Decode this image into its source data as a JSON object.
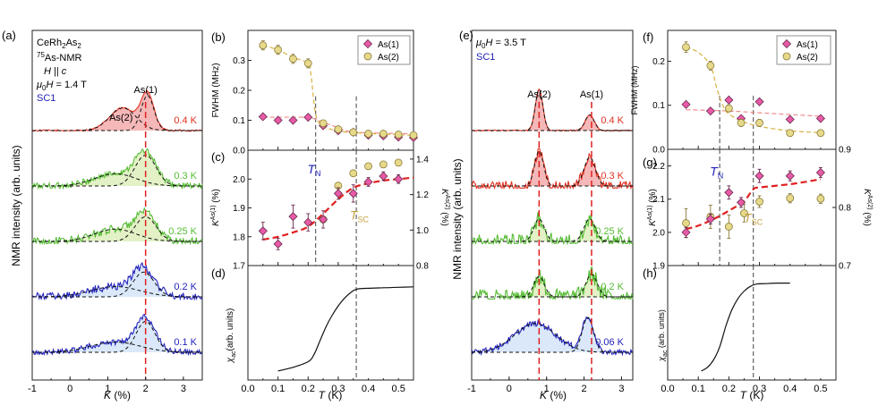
{
  "colors": {
    "as1": "#e85aa6",
    "as1_edge": "#6a2a50",
    "as2": "#e6d98a",
    "as2_edge": "#8a7a3a",
    "fit1": "#f08a8a",
    "fit2": "#d8b040",
    "guide": "#e02020",
    "red": "#e03020",
    "green": "#55bb33",
    "blue": "#2222bb",
    "gold": "#c8a040",
    "axis": "#222222",
    "vline": "#444444"
  },
  "chart_data": [
    {
      "id": "a",
      "type": "line",
      "panel_label": "(a)",
      "title_lines": [
        "CeRh2As2",
        "75As-NMR",
        "H || c",
        "μ0H = 1.4 T",
        "SC1"
      ],
      "xlabel": "K (%)",
      "ylabel": "NMR intensity (arb. units)",
      "xlim": [
        -1,
        3.5
      ],
      "xticks": [
        -1,
        0,
        1,
        2,
        3
      ],
      "guide_x": 2.0,
      "peak_labels": [
        {
          "text": "As(2)",
          "k": 1.35
        },
        {
          "text": "As(1)",
          "k": 2.0
        }
      ],
      "traces": [
        {
          "temp": "0.4 K",
          "color": "red",
          "fill": "#f4b0b0",
          "peaks": [
            [
              1.4,
              0.35,
              0.55
            ],
            [
              2.05,
              0.17,
              0.85
            ]
          ],
          "noise": 0.02
        },
        {
          "temp": "0.3 K",
          "color": "green",
          "fill": "#dff0c0",
          "peaks": [
            [
              1.2,
              0.55,
              0.3
            ],
            [
              2.0,
              0.28,
              0.75
            ]
          ],
          "noise": 0.08
        },
        {
          "temp": "0.25 K",
          "color": "green",
          "fill": "#dff0c0",
          "peaks": [
            [
              1.2,
              0.55,
              0.3
            ],
            [
              2.0,
              0.28,
              0.6
            ]
          ],
          "noise": 0.1
        },
        {
          "temp": "0.2 K",
          "color": "blue",
          "fill": "#d6e6f8",
          "peaks": [
            [
              1.2,
              0.65,
              0.25
            ],
            [
              1.95,
              0.28,
              0.6
            ]
          ],
          "noise": 0.1
        },
        {
          "temp": "0.1 K",
          "color": "blue",
          "fill": "#d6e6f8",
          "peaks": [
            [
              1.2,
              0.65,
              0.25
            ],
            [
              2.0,
              0.25,
              0.75
            ]
          ],
          "noise": 0.07
        }
      ]
    },
    {
      "id": "b",
      "type": "scatter",
      "panel_label": "(b)",
      "ylabel": "FWHM (MHz)",
      "xlim": [
        0,
        0.55
      ],
      "ylim": [
        0,
        0.4
      ],
      "yticks": [
        0.0,
        0.1,
        0.2,
        0.3
      ],
      "vlines": [
        0.225,
        0.36
      ],
      "series": [
        {
          "name": "As(1)",
          "marker": "diamond",
          "x": [
            0.05,
            0.1,
            0.15,
            0.2,
            0.25,
            0.3,
            0.35,
            0.4,
            0.45,
            0.5,
            0.55
          ],
          "y": [
            0.112,
            0.1,
            0.1,
            0.11,
            0.082,
            0.065,
            0.06,
            0.05,
            0.048,
            0.044,
            0.042
          ]
        },
        {
          "name": "As(2)",
          "marker": "circle",
          "x": [
            0.05,
            0.1,
            0.15,
            0.2,
            0.25,
            0.3,
            0.35,
            0.4,
            0.45,
            0.5,
            0.55
          ],
          "y": [
            0.35,
            0.335,
            0.305,
            0.29,
            0.09,
            0.07,
            0.06,
            0.055,
            0.055,
            0.052,
            0.05
          ],
          "err": [
            0.015,
            0.015,
            0.015,
            0.015,
            0.01,
            0.01,
            0.01,
            0.008,
            0.008,
            0.008,
            0.008
          ]
        }
      ],
      "fits": [
        {
          "series": "As(1)",
          "x": [
            0.05,
            0.2,
            0.22,
            0.3,
            0.36,
            0.55
          ],
          "y": [
            0.11,
            0.11,
            0.105,
            0.075,
            0.06,
            0.055
          ]
        },
        {
          "series": "As(2)",
          "x": [
            0.05,
            0.1,
            0.15,
            0.2,
            0.21,
            0.225,
            0.25,
            0.3,
            0.36,
            0.55
          ],
          "y": [
            0.35,
            0.335,
            0.31,
            0.29,
            0.25,
            0.12,
            0.08,
            0.065,
            0.058,
            0.05
          ]
        }
      ],
      "legend": [
        "As(1)",
        "As(2)"
      ]
    },
    {
      "id": "c",
      "type": "scatter",
      "panel_label": "(c)",
      "ylabel": "KAs(1) (%)",
      "ylabel_right": "KAs(2) (%)",
      "xlim": [
        0,
        0.55
      ],
      "ylim": [
        1.7,
        2.1
      ],
      "yticks": [
        1.7,
        1.8,
        1.9,
        2.0
      ],
      "ylim_right": [
        0.8,
        1.45
      ],
      "yticks_right": [
        0.8,
        1.0,
        1.2,
        1.4
      ],
      "vlines": [
        0.225,
        0.36
      ],
      "annotations": [
        {
          "text": "T_N",
          "x": 0.22,
          "y": 2.02,
          "color": "blue"
        },
        {
          "text": "T_SC",
          "x": 0.37,
          "y": 1.86,
          "color": "gold"
        }
      ],
      "series": [
        {
          "name": "As(1)",
          "marker": "diamond",
          "x": [
            0.05,
            0.1,
            0.15,
            0.2,
            0.25,
            0.3,
            0.35,
            0.4,
            0.45,
            0.5
          ],
          "y": [
            1.82,
            1.775,
            1.87,
            1.85,
            1.86,
            1.95,
            1.95,
            1.99,
            2.01,
            2.0
          ],
          "err": [
            0.03,
            0.02,
            0.04,
            0.03,
            0.03,
            0.02,
            0.03,
            0.015,
            0.015,
            0.015
          ]
        },
        {
          "name": "As(2)",
          "marker": "circle",
          "x": [
            0.25,
            0.3,
            0.35,
            0.4,
            0.45,
            0.5
          ],
          "y": [
            1.06,
            1.25,
            1.32,
            1.36,
            1.37,
            1.38
          ],
          "axis": "right"
        }
      ],
      "fit": {
        "x": [
          0.05,
          0.1,
          0.15,
          0.2,
          0.25,
          0.3,
          0.35,
          0.4,
          0.45,
          0.5,
          0.55
        ],
        "y": [
          1.79,
          1.8,
          1.815,
          1.835,
          1.88,
          1.93,
          1.97,
          1.985,
          1.995,
          2.0,
          2.005
        ]
      }
    },
    {
      "id": "d",
      "type": "line",
      "panel_label": "(d)",
      "ylabel": "χac(arb. units)",
      "xlabel": "T (K)",
      "xlim": [
        0,
        0.55
      ],
      "xticks": [
        0.0,
        0.1,
        0.2,
        0.3,
        0.4,
        0.5
      ],
      "vlines": [
        0.36
      ],
      "x": [
        0.1,
        0.15,
        0.2,
        0.22,
        0.24,
        0.26,
        0.28,
        0.3,
        0.32,
        0.34,
        0.36,
        0.4,
        0.45,
        0.5,
        0.55
      ],
      "y": [
        0.02,
        0.06,
        0.12,
        0.2,
        0.35,
        0.5,
        0.62,
        0.72,
        0.8,
        0.86,
        0.9,
        0.91,
        0.915,
        0.92,
        0.925
      ]
    },
    {
      "id": "e",
      "type": "line",
      "panel_label": "(e)",
      "title_lines": [
        "μ0H = 3.5 T",
        "SC1"
      ],
      "xlabel": "K (%)",
      "ylabel": "NMR intensity (arb. units)",
      "xlim": [
        -1,
        3.3
      ],
      "xticks": [
        -1,
        0,
        1,
        2,
        3
      ],
      "guide_x": [
        0.8,
        2.2
      ],
      "peak_labels": [
        {
          "text": "As(2)",
          "k": 0.8
        },
        {
          "text": "As(1)",
          "k": 2.2
        }
      ],
      "traces": [
        {
          "temp": "0.4 K",
          "color": "red",
          "fill": "#f4b0b0",
          "peaks": [
            [
              0.8,
              0.1,
              1.0
            ],
            [
              2.15,
              0.12,
              0.38
            ]
          ],
          "noise": 0.015
        },
        {
          "temp": "0.3 K",
          "color": "red",
          "fill": "#f4b0b0",
          "peaks": [
            [
              0.8,
              0.12,
              0.85
            ],
            [
              2.15,
              0.15,
              0.7
            ]
          ],
          "noise": 0.12
        },
        {
          "temp": "0.25 K",
          "color": "green",
          "fill": "#dff0c0",
          "peaks": [
            [
              0.8,
              0.14,
              0.55
            ],
            [
              2.15,
              0.15,
              0.55
            ]
          ],
          "noise": 0.18
        },
        {
          "temp": "0.2 K",
          "color": "green",
          "fill": "#dff0c0",
          "peaks": [
            [
              0.8,
              0.14,
              0.5
            ],
            [
              2.2,
              0.15,
              0.55
            ]
          ],
          "noise": 0.2
        },
        {
          "temp": "0.06 K",
          "color": "blue",
          "fill": "#d6e6f8",
          "peaks": [
            [
              0.7,
              0.55,
              0.7
            ],
            [
              2.1,
              0.15,
              0.85
            ]
          ],
          "noise": 0.07
        }
      ]
    },
    {
      "id": "f",
      "type": "scatter",
      "panel_label": "(f)",
      "ylabel": "FWHM (MHz)",
      "xlim": [
        0,
        0.55
      ],
      "ylim": [
        0,
        0.27
      ],
      "yticks": [
        0.0,
        0.1,
        0.2
      ],
      "vlines": [
        0.17,
        0.28
      ],
      "series": [
        {
          "name": "As(1)",
          "marker": "diamond",
          "x": [
            0.06,
            0.14,
            0.2,
            0.24,
            0.3,
            0.4,
            0.5
          ],
          "y": [
            0.102,
            0.087,
            0.112,
            0.07,
            0.108,
            0.068,
            0.07
          ]
        },
        {
          "name": "As(2)",
          "marker": "circle",
          "x": [
            0.06,
            0.14,
            0.2,
            0.24,
            0.3,
            0.4,
            0.5
          ],
          "y": [
            0.232,
            0.19,
            0.093,
            0.06,
            0.06,
            0.037,
            0.037
          ],
          "err": [
            0.012,
            0.01,
            0.008,
            0.008,
            0.008,
            0.006,
            0.006
          ]
        }
      ],
      "fits": [
        {
          "series": "As(1)",
          "x": [
            0.06,
            0.2,
            0.3,
            0.4,
            0.5
          ],
          "y": [
            0.09,
            0.087,
            0.083,
            0.079,
            0.075
          ]
        },
        {
          "series": "As(2)",
          "x": [
            0.06,
            0.1,
            0.14,
            0.16,
            0.18,
            0.2,
            0.25,
            0.3,
            0.4,
            0.5
          ],
          "y": [
            0.232,
            0.22,
            0.19,
            0.14,
            0.1,
            0.08,
            0.062,
            0.052,
            0.042,
            0.038
          ]
        }
      ],
      "legend": [
        "As(1)",
        "As(2)"
      ]
    },
    {
      "id": "g",
      "type": "scatter",
      "panel_label": "(g)",
      "ylabel": "KAs(1) (%)",
      "ylabel_right": "KAs(2) (%)",
      "xlim": [
        0,
        0.55
      ],
      "ylim": [
        1.9,
        2.25
      ],
      "yticks": [
        1.9,
        2.0,
        2.1,
        2.2
      ],
      "ylim_right": [
        0.7,
        0.9
      ],
      "yticks_right": [
        0.7,
        0.8,
        0.9
      ],
      "vlines": [
        0.17,
        0.28
      ],
      "annotations": [
        {
          "text": "T_N",
          "x": 0.16,
          "y": 2.17,
          "color": "blue"
        },
        {
          "text": "T_SC",
          "x": 0.28,
          "y": 2.03,
          "color": "gold"
        }
      ],
      "series": [
        {
          "name": "As(1)",
          "marker": "diamond",
          "x": [
            0.06,
            0.14,
            0.2,
            0.24,
            0.3,
            0.4,
            0.5
          ],
          "y": [
            2.0,
            2.04,
            2.12,
            2.09,
            2.17,
            2.17,
            2.18
          ],
          "err": [
            0.015,
            0.015,
            0.02,
            0.015,
            0.02,
            0.015,
            0.015
          ]
        },
        {
          "name": "As(2)",
          "marker": "circle",
          "x": [
            0.06,
            0.14,
            0.2,
            0.25,
            0.3,
            0.4,
            0.5
          ],
          "y": [
            0.773,
            0.784,
            0.767,
            0.79,
            0.81,
            0.816,
            0.815
          ],
          "err": [
            0.025,
            0.02,
            0.02,
            0.015,
            0.01,
            0.008,
            0.008
          ],
          "axis": "right"
        }
      ],
      "fit": {
        "x": [
          0.06,
          0.1,
          0.15,
          0.2,
          0.25,
          0.28,
          0.3,
          0.35,
          0.4,
          0.45,
          0.5
        ],
        "y": [
          2.01,
          2.02,
          2.04,
          2.065,
          2.095,
          2.13,
          2.135,
          2.14,
          2.145,
          2.152,
          2.16
        ]
      }
    },
    {
      "id": "h",
      "type": "line",
      "panel_label": "(h)",
      "ylabel": "χac (arb. units)",
      "xlabel": "T (K)",
      "xlim": [
        0,
        0.55
      ],
      "xticks": [
        0.0,
        0.1,
        0.2,
        0.3,
        0.4,
        0.5
      ],
      "vlines": [
        0.28
      ],
      "x": [
        0.11,
        0.13,
        0.15,
        0.17,
        0.19,
        0.21,
        0.23,
        0.25,
        0.27,
        0.29,
        0.32,
        0.36,
        0.4
      ],
      "y": [
        0.02,
        0.06,
        0.14,
        0.28,
        0.5,
        0.68,
        0.8,
        0.88,
        0.93,
        0.955,
        0.96,
        0.965,
        0.965
      ]
    }
  ],
  "text": {
    "a_l1": "CeRh",
    "a_l1s": "2",
    "a_l1b": "As",
    "a_l1bs": "2",
    "a_l2sup": "75",
    "a_l2": "As-NMR",
    "a_l3a": "H",
    "a_l3b": " || ",
    "a_l3c": "c",
    "a_l4a": "μ",
    "a_l4s": "0",
    "a_l4b": "H",
    "a_l4c": " = 1.4 T",
    "a_l5": "SC1",
    "e_l1a": "μ",
    "e_l1s": "0",
    "e_l1b": "H",
    "e_l1c": " = 3.5 T",
    "e_l2": "SC1",
    "k_label": "K",
    "k_unit": " (%)",
    "t_label": "T",
    "t_unit": " (K)",
    "nmr_ylabel": "NMR intensity (arb. units)",
    "fwhm": "FWHM (MHz)",
    "kas1_base": "K",
    "kas1_sup": "As(1)",
    "kas_unit": " (%)",
    "kas2_sup": "As(2)",
    "chi_base": "χ",
    "chi_sub": "ac",
    "chi_unit": "(arb. units)",
    "chi_unit_h": " (arb. units)",
    "tn_base": "T",
    "tn_sub": "N",
    "tsc_base": "T",
    "tsc_sub": "SC",
    "leg1": "As(1)",
    "leg2": "As(2)"
  }
}
